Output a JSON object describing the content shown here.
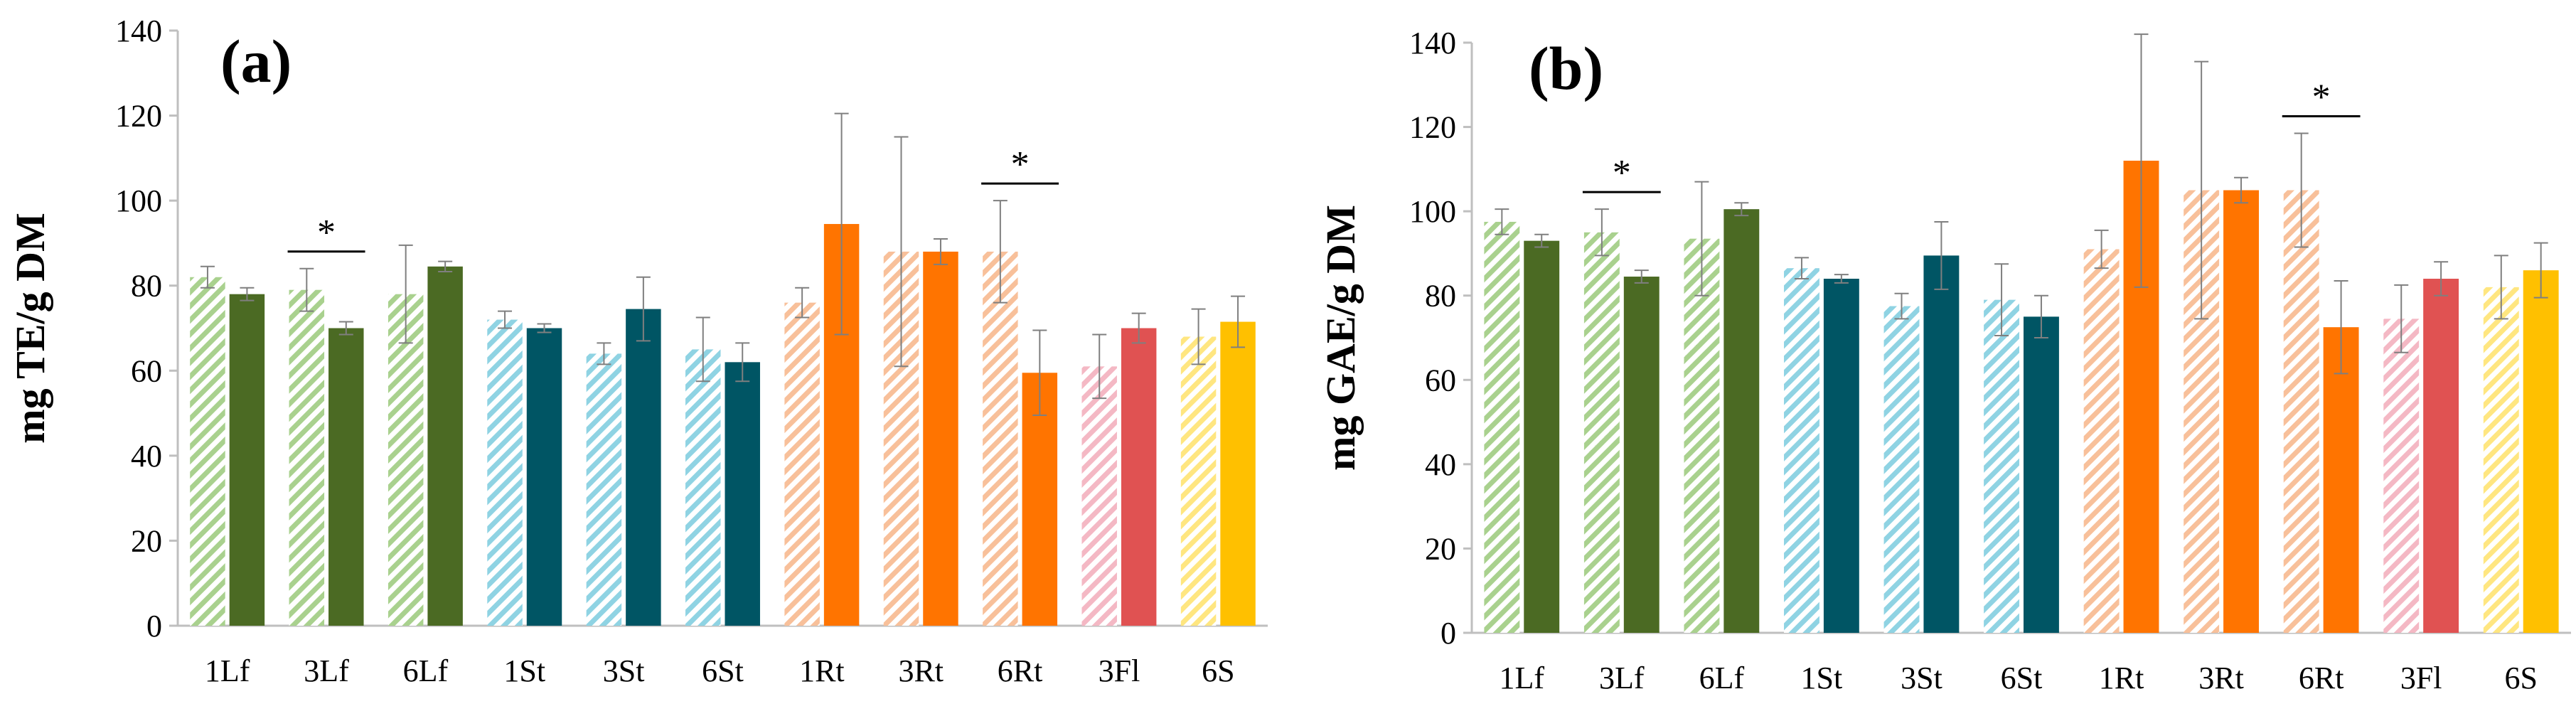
{
  "chart_data": [
    {
      "type": "bar",
      "panel_label": "(a)",
      "ylabel": "mg TE/g DM",
      "ylim": [
        0,
        140
      ],
      "yticks": [
        0,
        20,
        40,
        60,
        80,
        100,
        120,
        140
      ],
      "categories": [
        "1Lf",
        "3Lf",
        "6Lf",
        "1St",
        "3St",
        "6St",
        "1Rt",
        "3Rt",
        "6Rt",
        "3Fl",
        "6S"
      ],
      "series": [
        {
          "name": "hatched",
          "values": [
            82,
            79,
            78,
            72,
            64,
            65,
            76,
            88,
            88,
            61,
            68
          ],
          "errors": [
            2.5,
            5,
            11.5,
            2,
            2.5,
            7.5,
            3.5,
            27,
            12,
            7.5,
            6.5
          ]
        },
        {
          "name": "solid",
          "values": [
            78,
            70,
            84.5,
            70,
            74.5,
            62,
            94.5,
            88,
            59.5,
            70,
            71.5
          ],
          "errors": [
            1.5,
            1.5,
            1.2,
            1,
            7.5,
            4.5,
            26,
            3,
            10,
            3.5,
            6
          ]
        }
      ],
      "significance": [
        {
          "category": "3Lf",
          "label": "*"
        },
        {
          "category": "6Rt",
          "label": "*"
        }
      ]
    },
    {
      "type": "bar",
      "panel_label": "(b)",
      "ylabel": "mg GAE/g DM",
      "ylim": [
        0,
        140
      ],
      "yticks": [
        0,
        20,
        40,
        60,
        80,
        100,
        120,
        140
      ],
      "categories": [
        "1Lf",
        "3Lf",
        "6Lf",
        "1St",
        "3St",
        "6St",
        "1Rt",
        "3Rt",
        "6Rt",
        "3Fl",
        "6S"
      ],
      "series": [
        {
          "name": "hatched",
          "values": [
            97.5,
            95,
            93.5,
            86.5,
            77.5,
            79,
            91,
            105,
            105,
            74.5,
            82
          ],
          "errors": [
            3,
            5.5,
            13.5,
            2.5,
            3,
            8.5,
            4.5,
            30.5,
            13.5,
            8,
            7.5
          ]
        },
        {
          "name": "solid",
          "values": [
            93,
            84.5,
            100.5,
            84,
            89.5,
            75,
            112,
            105,
            72.5,
            84,
            86
          ],
          "errors": [
            1.5,
            1.5,
            1.5,
            1,
            8,
            5,
            30,
            3,
            11,
            4,
            6.5
          ]
        }
      ],
      "significance": [
        {
          "category": "3Lf",
          "label": "*"
        },
        {
          "category": "6Rt",
          "label": "*"
        }
      ]
    }
  ],
  "group_colors": {
    "Lf": {
      "light": "#a9d18e",
      "dark": "#4b6a23"
    },
    "St": {
      "light": "#8fd3e3",
      "dark": "#005564"
    },
    "Rt": {
      "light": "#f8c09a",
      "dark": "#ff7400"
    },
    "Fl": {
      "light": "#f4b8c4",
      "dark": "#e05252"
    },
    "S": {
      "light": "#ffe680",
      "dark": "#ffc000"
    }
  },
  "errorbar_color": "#7f7f7f",
  "axis_color": "#bfbfbf"
}
